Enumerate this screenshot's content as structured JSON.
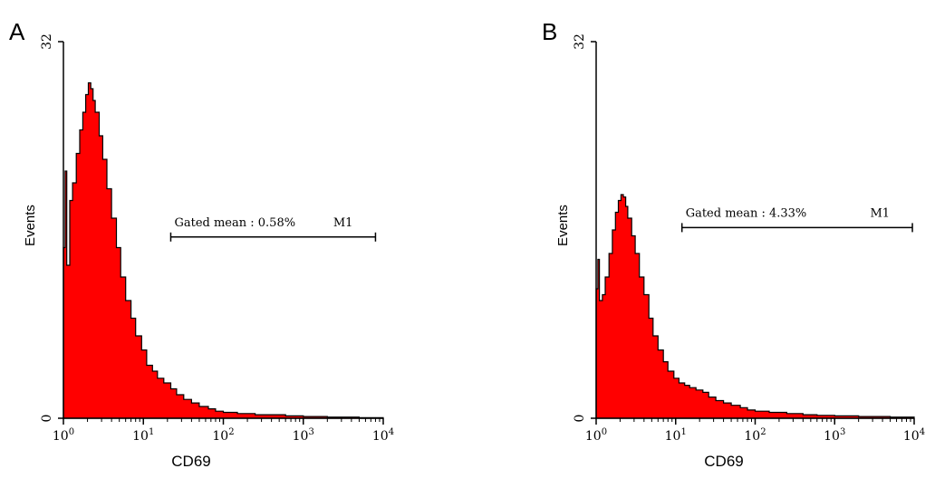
{
  "chart_data": [
    {
      "type": "area",
      "panel": "A",
      "title": "",
      "xlabel": "CD69",
      "ylabel": "Events",
      "xscale": "log",
      "xlim": [
        1,
        10000
      ],
      "ylim": [
        0,
        32
      ],
      "xticks": [
        {
          "value": 1,
          "base": "10",
          "exp": "0"
        },
        {
          "value": 10,
          "base": "10",
          "exp": "1"
        },
        {
          "value": 100,
          "base": "10",
          "exp": "2"
        },
        {
          "value": 1000,
          "base": "10",
          "exp": "3"
        },
        {
          "value": 10000,
          "base": "10",
          "exp": "4"
        }
      ],
      "yticks": [
        {
          "value": 0,
          "label": "0"
        },
        {
          "value": 32,
          "label": "32"
        }
      ],
      "fill_color": "#ff0000",
      "x": [
        1.0,
        1.05,
        1.1,
        1.2,
        1.3,
        1.45,
        1.6,
        1.75,
        1.9,
        2.05,
        2.2,
        2.35,
        2.5,
        2.8,
        3.1,
        3.5,
        4.0,
        4.6,
        5.2,
        6.0,
        7.0,
        8.0,
        9.5,
        11,
        13,
        15,
        18,
        22,
        26,
        32,
        40,
        50,
        65,
        80,
        100,
        150,
        250,
        400,
        600,
        1000,
        2000,
        5000,
        10000
      ],
      "values": [
        14.5,
        21,
        13,
        18.5,
        20,
        22.5,
        24.5,
        26,
        27.5,
        28.5,
        28,
        27,
        26,
        24,
        22,
        19.5,
        17,
        14.5,
        12,
        10,
        8.5,
        7,
        5.8,
        4.5,
        4,
        3.4,
        3,
        2.5,
        2,
        1.6,
        1.3,
        1.0,
        0.8,
        0.6,
        0.5,
        0.4,
        0.3,
        0.3,
        0.2,
        0.15,
        0.1,
        0.05,
        0
      ],
      "marker": {
        "label": "Gated mean : 0.58%",
        "name": "M1",
        "x_start": 22,
        "x_end": 8000,
        "y": 15.4
      }
    },
    {
      "type": "area",
      "panel": "B",
      "title": "",
      "xlabel": "CD69",
      "ylabel": "Events",
      "xscale": "log",
      "xlim": [
        1,
        10000
      ],
      "ylim": [
        0,
        32
      ],
      "xticks": [
        {
          "value": 1,
          "base": "10",
          "exp": "0"
        },
        {
          "value": 10,
          "base": "10",
          "exp": "1"
        },
        {
          "value": 100,
          "base": "10",
          "exp": "2"
        },
        {
          "value": 1000,
          "base": "10",
          "exp": "3"
        },
        {
          "value": 10000,
          "base": "10",
          "exp": "4"
        }
      ],
      "yticks": [
        {
          "value": 0,
          "label": "0"
        },
        {
          "value": 32,
          "label": "32"
        }
      ],
      "fill_color": "#ff0000",
      "x": [
        1.0,
        1.05,
        1.1,
        1.2,
        1.3,
        1.45,
        1.6,
        1.75,
        1.9,
        2.05,
        2.2,
        2.35,
        2.5,
        2.8,
        3.1,
        3.5,
        4.0,
        4.6,
        5.2,
        6.0,
        7.0,
        8.0,
        9.5,
        11,
        13,
        15,
        18,
        22,
        26,
        32,
        40,
        50,
        65,
        80,
        100,
        150,
        250,
        400,
        600,
        1000,
        2000,
        5000,
        10000
      ],
      "values": [
        11,
        13.5,
        10,
        10.5,
        12,
        14,
        16,
        17.5,
        18.5,
        19,
        18.8,
        18,
        17,
        15.5,
        14,
        12,
        10.5,
        8.5,
        7,
        5.8,
        4.8,
        4,
        3.4,
        3,
        2.8,
        2.6,
        2.4,
        2.2,
        1.8,
        1.5,
        1.3,
        1.1,
        0.9,
        0.7,
        0.6,
        0.5,
        0.4,
        0.3,
        0.25,
        0.2,
        0.15,
        0.1,
        0
      ],
      "marker": {
        "label": "Gated mean : 4.33%",
        "name": "M1",
        "x_start": 12,
        "x_end": 9500,
        "y": 16.2
      }
    }
  ]
}
